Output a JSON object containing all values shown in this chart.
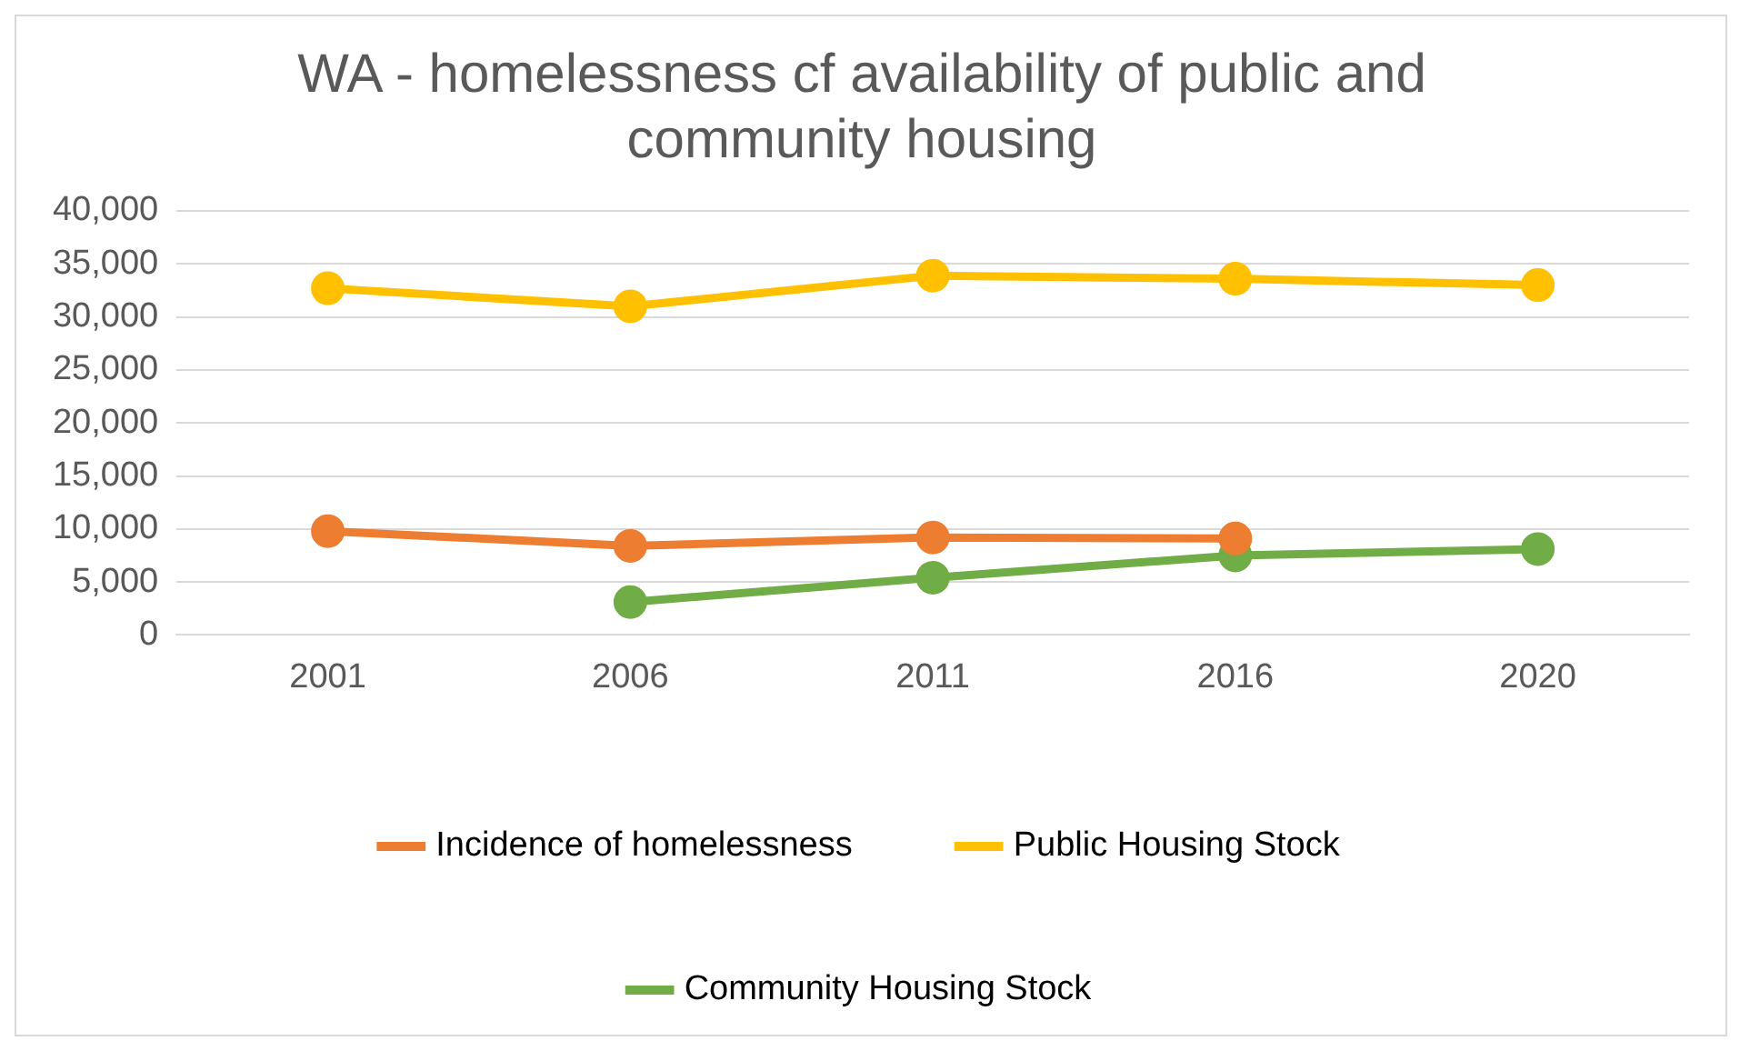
{
  "chart_data": {
    "type": "line",
    "title": "WA - homelessness cf availability of public and community housing",
    "categories": [
      "2001",
      "2006",
      "2011",
      "2016",
      "2020"
    ],
    "series": [
      {
        "name": "Incidence of homelessness",
        "color": "#ed7d31",
        "values": [
          9800,
          8400,
          9200,
          9100,
          null
        ]
      },
      {
        "name": "Public Housing Stock",
        "color": "#ffc000",
        "values": [
          32700,
          31000,
          33900,
          33600,
          33000
        ]
      },
      {
        "name": "Community Housing Stock",
        "color": "#70ad47",
        "values": [
          null,
          3100,
          5400,
          7500,
          8100
        ]
      }
    ],
    "ylim": [
      0,
      40000
    ],
    "yticks": [
      0,
      {
        "value": 5000,
        "label": "5,000"
      },
      {
        "value": 10000,
        "label": "10,000"
      },
      {
        "value": 15000,
        "label": "15,000"
      },
      {
        "value": 20000,
        "label": "20,000"
      },
      {
        "value": 25000,
        "label": "25,000"
      },
      {
        "value": 30000,
        "label": "30,000"
      },
      {
        "value": 35000,
        "label": "35,000"
      },
      {
        "value": 40000,
        "label": "40,000"
      }
    ],
    "grid": "y",
    "legend": "bottom",
    "marker": "circle",
    "line_style": "solid"
  }
}
